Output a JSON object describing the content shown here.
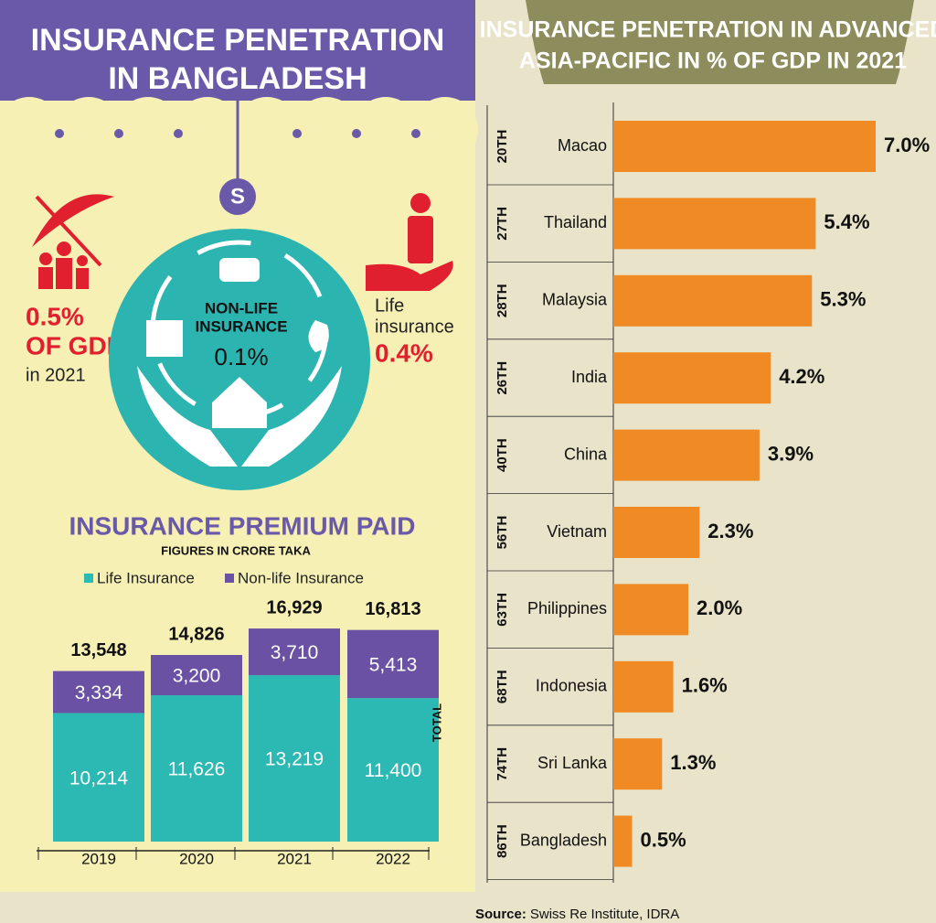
{
  "header": {
    "title": [
      "INSURANCE PENETRATION",
      "IN BANGLADESH"
    ]
  },
  "overview": {
    "total_value": "0.5%",
    "total_unit": "OF GDP",
    "total_year": "in 2021",
    "non_life_label": [
      "NON-LIFE",
      "INSURANCE"
    ],
    "non_life_value": "0.1%",
    "life_label": [
      "Life",
      "insurance"
    ],
    "life_value": "0.4%"
  },
  "chart_data": [
    {
      "type": "stacked-bar",
      "title": "INSURANCE PREMIUM PAID",
      "subtitle": "FIGURES IN CRORE TAKA",
      "categories": [
        "2019",
        "2020",
        "2021",
        "2022"
      ],
      "series": [
        {
          "name": "Life Insurance",
          "color": "#2cb8b3",
          "values": [
            10214,
            11626,
            13219,
            11400
          ],
          "value_labels": [
            "10,214",
            "11,626",
            "13,219",
            "11,400"
          ]
        },
        {
          "name": "Non-life Insurance",
          "color": "#6a51a3",
          "values": [
            3334,
            3200,
            3710,
            5413
          ],
          "value_labels": [
            "3,334",
            "3,200",
            "3,710",
            "5,413"
          ]
        }
      ],
      "totals": [
        13548,
        14826,
        16929,
        16813
      ],
      "total_labels": [
        "13,548",
        "14,826",
        "16,929",
        "16,813"
      ],
      "total_label": "TOTAL"
    },
    {
      "type": "hbar",
      "title": [
        "INSURANCE PENETRATION IN ADVANCED",
        "ASIA-PACIFIC IN % OF GDP IN 2021"
      ],
      "categories": [
        "Macao",
        "Thailand",
        "Malaysia",
        "India",
        "China",
        "Vietnam",
        "Philippines",
        "Indonesia",
        "Sri Lanka",
        "Bangladesh"
      ],
      "ranks": [
        "20TH",
        "27TH",
        "28TH",
        "26TH",
        "40TH",
        "56TH",
        "63TH",
        "68TH",
        "74TH",
        "86TH"
      ],
      "values": [
        7.0,
        5.4,
        5.3,
        4.2,
        3.9,
        2.3,
        2.0,
        1.6,
        1.3,
        0.5
      ],
      "value_labels": [
        "7.0%",
        "5.4%",
        "5.3%",
        "4.2%",
        "3.9%",
        "2.3%",
        "2.0%",
        "1.6%",
        "1.3%",
        "0.5%"
      ],
      "color": "#f08a24"
    }
  ],
  "source": {
    "label": "Source:",
    "text": "Swiss Re Institute, IDRA"
  }
}
